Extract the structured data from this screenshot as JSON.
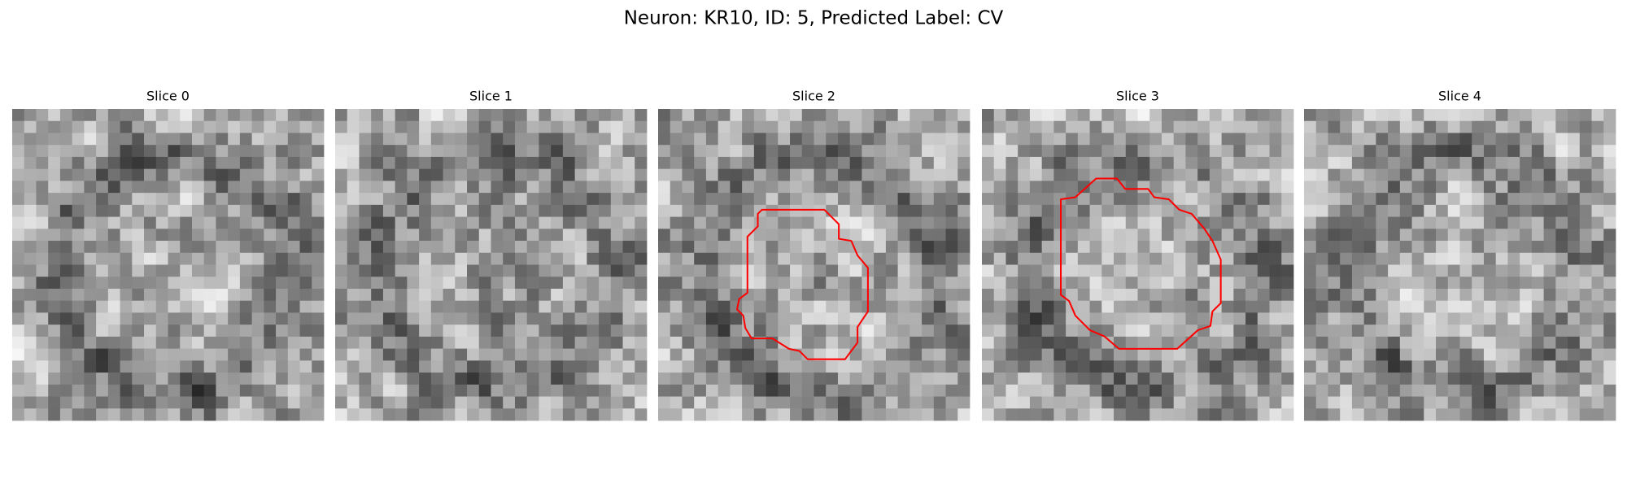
{
  "title": "Neuron: KR10, ID: 5, Predicted Label: CV",
  "panels": [
    {
      "title": "Slice 0"
    },
    {
      "title": "Slice 1"
    },
    {
      "title": "Slice 2"
    },
    {
      "title": "Slice 3"
    },
    {
      "title": "Slice 4"
    }
  ]
}
